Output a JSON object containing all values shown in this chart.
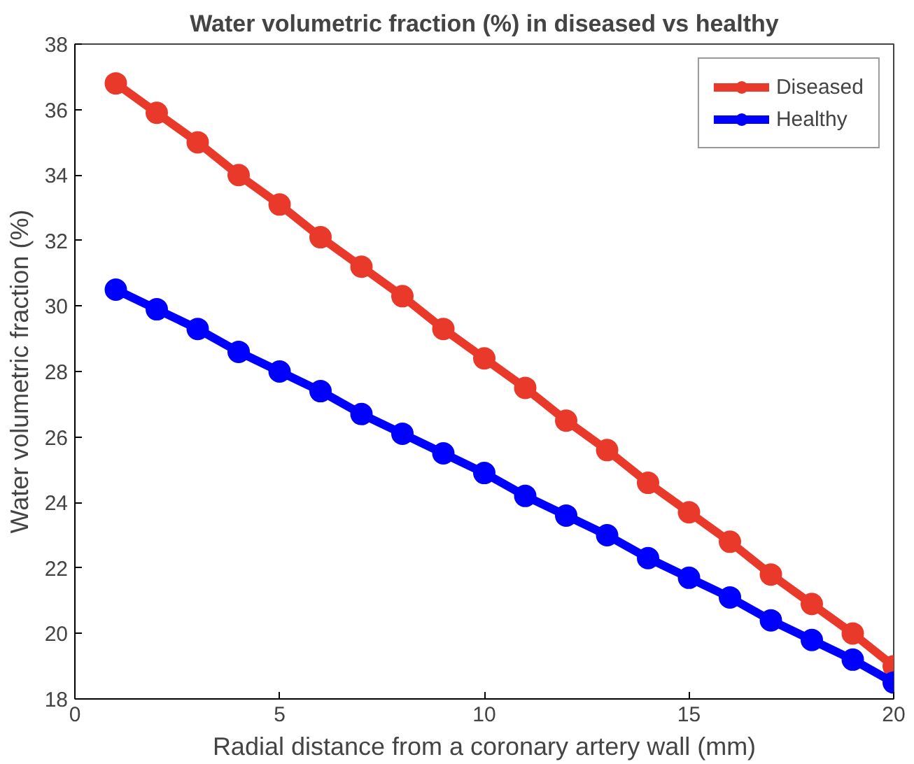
{
  "chart_data": {
    "type": "line",
    "title": "Water volumetric fraction (%) in diseased vs healthy",
    "xlabel": "Radial distance from a coronary artery wall (mm)",
    "ylabel": "Water volumetric fraction (%)",
    "x": [
      1,
      2,
      3,
      4,
      5,
      6,
      7,
      8,
      9,
      10,
      11,
      12,
      13,
      14,
      15,
      16,
      17,
      18,
      19,
      20
    ],
    "series": [
      {
        "name": "Diseased",
        "color": "#e8392b",
        "values": [
          36.8,
          35.9,
          35.0,
          34.0,
          33.1,
          32.1,
          31.2,
          30.3,
          29.3,
          28.4,
          27.5,
          26.5,
          25.6,
          24.6,
          23.7,
          22.8,
          21.8,
          20.9,
          20.0,
          19.0
        ]
      },
      {
        "name": "Healthy",
        "color": "#0000ff",
        "values": [
          30.5,
          29.9,
          29.3,
          28.6,
          28.0,
          27.4,
          26.7,
          26.1,
          25.5,
          24.9,
          24.2,
          23.6,
          23.0,
          22.3,
          21.7,
          21.1,
          20.4,
          19.8,
          19.2,
          18.5
        ]
      }
    ],
    "xlim": [
      0,
      20
    ],
    "ylim": [
      18,
      38
    ],
    "xticks": [
      0,
      5,
      10,
      15,
      20
    ],
    "yticks": [
      18,
      20,
      22,
      24,
      26,
      28,
      30,
      32,
      34,
      36,
      38
    ],
    "grid": false,
    "legend": "top right",
    "marker": "circle",
    "line_style": "solid"
  }
}
